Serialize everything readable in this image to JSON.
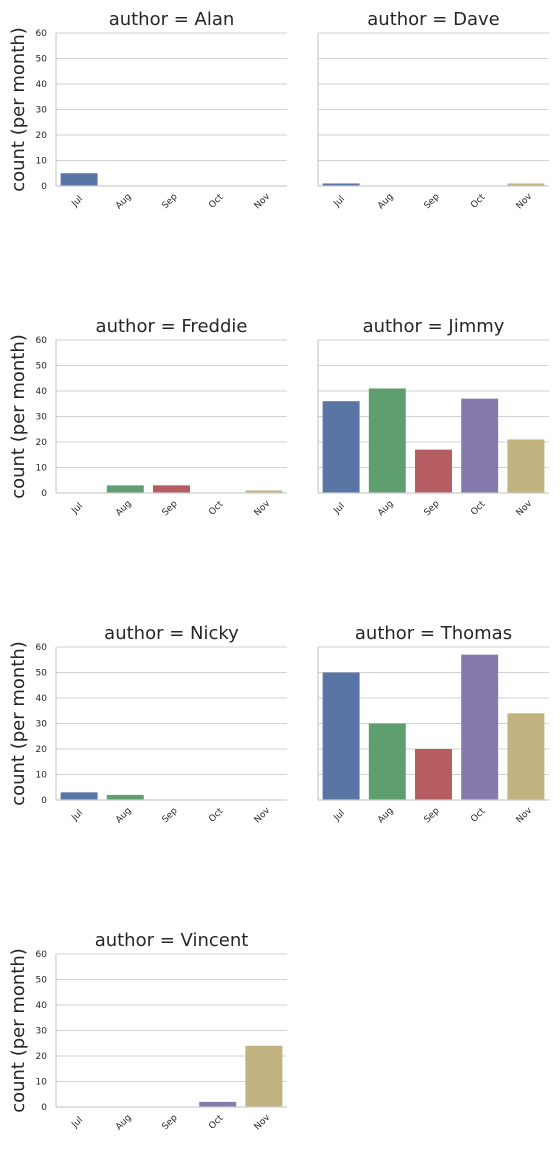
{
  "chart_data": {
    "type": "bar",
    "layout": "faceted grid, 2 columns, shared y-axis",
    "categories": [
      "Jul",
      "Aug",
      "Sep",
      "Oct",
      "Nov"
    ],
    "ylabel": "count (per month)",
    "ylim": [
      0,
      60
    ],
    "yticks": [
      0,
      10,
      20,
      30,
      40,
      50,
      60
    ],
    "grid": "horizontal",
    "colors": [
      "#5975a4",
      "#5f9e6e",
      "#b55d60",
      "#857aab",
      "#c1b37f"
    ],
    "panels": [
      {
        "title": "author = Alan",
        "values": [
          5,
          0,
          0,
          0,
          0
        ]
      },
      {
        "title": "author = Dave",
        "values": [
          1,
          0,
          0,
          0,
          1
        ]
      },
      {
        "title": "author = Freddie",
        "values": [
          0,
          3,
          3,
          0,
          1
        ]
      },
      {
        "title": "author = Jimmy",
        "values": [
          36,
          41,
          17,
          37,
          21
        ]
      },
      {
        "title": "author = Nicky",
        "values": [
          3,
          2,
          0,
          0,
          0
        ]
      },
      {
        "title": "author = Thomas",
        "values": [
          50,
          30,
          20,
          57,
          34
        ]
      },
      {
        "title": "author = Vincent",
        "values": [
          0,
          0,
          0,
          2,
          24
        ]
      }
    ]
  }
}
